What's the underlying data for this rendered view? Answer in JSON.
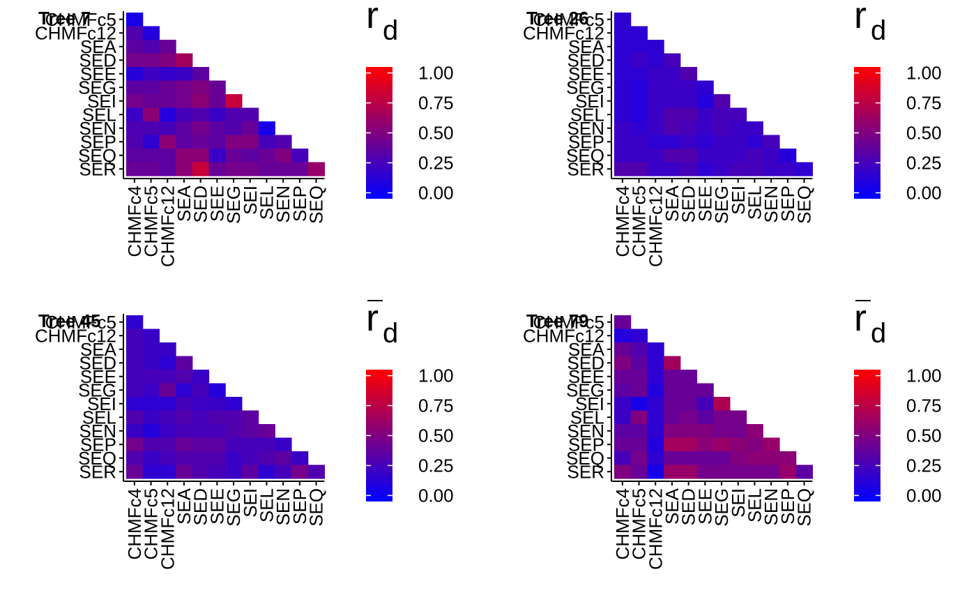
{
  "chart_data": [
    {
      "type": "heatmap",
      "title": "Tree 7",
      "legend_title": "r",
      "legend_subscript": "d",
      "legend_bar": false,
      "y_labels": [
        "CHMFc5",
        "CHMFc12",
        "SEA",
        "SED",
        "SEE",
        "SEG",
        "SEI",
        "SEL",
        "SEN",
        "SEP",
        "SEQ",
        "SER"
      ],
      "x_labels": [
        "CHMFc4",
        "CHMFc5",
        "CHMFc12",
        "SEA",
        "SED",
        "SEE",
        "SEG",
        "SEI",
        "SEL",
        "SEN",
        "SEP",
        "SEQ"
      ],
      "values": [
        [
          0.05
        ],
        [
          0.3,
          0.1
        ],
        [
          0.35,
          0.3,
          0.4
        ],
        [
          0.45,
          0.45,
          0.5,
          0.65
        ],
        [
          0.12,
          0.22,
          0.18,
          0.2,
          0.35
        ],
        [
          0.35,
          0.35,
          0.4,
          0.45,
          0.5,
          0.4
        ],
        [
          0.45,
          0.4,
          0.4,
          0.45,
          0.55,
          0.4,
          0.8
        ],
        [
          0.2,
          0.55,
          0.1,
          0.25,
          0.3,
          0.2,
          0.3,
          0.3
        ],
        [
          0.28,
          0.28,
          0.25,
          0.35,
          0.45,
          0.35,
          0.3,
          0.4,
          0.05
        ],
        [
          0.3,
          0.15,
          0.55,
          0.35,
          0.4,
          0.35,
          0.5,
          0.5,
          0.25,
          0.3
        ],
        [
          0.35,
          0.35,
          0.35,
          0.55,
          0.55,
          0.2,
          0.4,
          0.35,
          0.4,
          0.5,
          0.25
        ],
        [
          0.4,
          0.4,
          0.35,
          0.55,
          0.8,
          0.4,
          0.45,
          0.45,
          0.4,
          0.4,
          0.4,
          0.6
        ]
      ],
      "legend_ticks": [
        "1.00",
        "0.75",
        "0.50",
        "0.25",
        "0.00"
      ],
      "color_scale": {
        "low": "#0000ff",
        "high": "#ff0000",
        "limits": [
          -0.05,
          1.05
        ]
      }
    },
    {
      "type": "heatmap",
      "title": "Tree 26",
      "legend_title": "r",
      "legend_subscript": "d",
      "legend_bar": false,
      "y_labels": [
        "CHMFc5",
        "CHMFc12",
        "SEA",
        "SED",
        "SEE",
        "SEG",
        "SEI",
        "SEL",
        "SEN",
        "SEP",
        "SEQ",
        "SER"
      ],
      "x_labels": [
        "CHMFc4",
        "CHMFc5",
        "CHMFc12",
        "SEA",
        "SED",
        "SEE",
        "SEG",
        "SEI",
        "SEL",
        "SEN",
        "SEP",
        "SEQ"
      ],
      "values": [
        [
          0.15
        ],
        [
          0.15,
          0.15
        ],
        [
          0.15,
          0.15,
          0.15
        ],
        [
          0.15,
          0.2,
          0.15,
          0.25
        ],
        [
          0.15,
          0.15,
          0.2,
          0.2,
          0.3
        ],
        [
          0.15,
          0.1,
          0.2,
          0.2,
          0.2,
          0.15
        ],
        [
          0.15,
          0.1,
          0.2,
          0.2,
          0.2,
          0.1,
          0.3
        ],
        [
          0.15,
          0.1,
          0.2,
          0.3,
          0.3,
          0.2,
          0.25,
          0.25
        ],
        [
          0.2,
          0.15,
          0.2,
          0.3,
          0.25,
          0.2,
          0.25,
          0.2,
          0.2
        ],
        [
          0.2,
          0.2,
          0.15,
          0.15,
          0.2,
          0.15,
          0.2,
          0.2,
          0.15,
          0.25
        ],
        [
          0.2,
          0.2,
          0.2,
          0.3,
          0.3,
          0.2,
          0.2,
          0.2,
          0.25,
          0.2,
          0.1
        ],
        [
          0.3,
          0.3,
          0.2,
          0.2,
          0.25,
          0.15,
          0.2,
          0.25,
          0.25,
          0.2,
          0.2,
          0.15
        ]
      ],
      "legend_ticks": [
        "1.00",
        "0.75",
        "0.50",
        "0.25",
        "0.00"
      ],
      "color_scale": {
        "low": "#0000ff",
        "high": "#ff0000",
        "limits": [
          -0.05,
          1.05
        ]
      }
    },
    {
      "type": "heatmap",
      "title": "Tree 45",
      "legend_title": "r",
      "legend_subscript": "d",
      "legend_bar": true,
      "y_labels": [
        "CHMFc5",
        "CHMFc12",
        "SEA",
        "SED",
        "SEE",
        "SEG",
        "SEI",
        "SEL",
        "SEN",
        "SEP",
        "SEQ",
        "SER"
      ],
      "x_labels": [
        "CHMFc4",
        "CHMFc5",
        "CHMFc12",
        "SEA",
        "SED",
        "SEE",
        "SEG",
        "SEI",
        "SEL",
        "SEN",
        "SEP",
        "SEQ"
      ],
      "values": [
        [
          0.15
        ],
        [
          0.25,
          0.2
        ],
        [
          0.25,
          0.2,
          0.2
        ],
        [
          0.25,
          0.2,
          0.15,
          0.35
        ],
        [
          0.25,
          0.25,
          0.25,
          0.3,
          0.2
        ],
        [
          0.25,
          0.2,
          0.4,
          0.15,
          0.25,
          0.1
        ],
        [
          0.15,
          0.15,
          0.15,
          0.25,
          0.2,
          0.2,
          0.15
        ],
        [
          0.3,
          0.2,
          0.25,
          0.3,
          0.25,
          0.3,
          0.3,
          0.35
        ],
        [
          0.2,
          0.1,
          0.2,
          0.25,
          0.25,
          0.25,
          0.3,
          0.35,
          0.4
        ],
        [
          0.45,
          0.3,
          0.3,
          0.4,
          0.35,
          0.35,
          0.25,
          0.25,
          0.25,
          0.2
        ],
        [
          0.3,
          0.2,
          0.25,
          0.3,
          0.3,
          0.3,
          0.2,
          0.25,
          0.3,
          0.35,
          0.2
        ],
        [
          0.4,
          0.15,
          0.15,
          0.4,
          0.3,
          0.25,
          0.2,
          0.35,
          0.15,
          0.25,
          0.45,
          0.3
        ]
      ],
      "legend_ticks": [
        "1.00",
        "0.75",
        "0.50",
        "0.25",
        "0.00"
      ],
      "color_scale": {
        "low": "#0000ff",
        "high": "#ff0000",
        "limits": [
          -0.05,
          1.05
        ]
      }
    },
    {
      "type": "heatmap",
      "title": "Tree 79",
      "legend_title": "r",
      "legend_subscript": "d",
      "legend_bar": true,
      "y_labels": [
        "CHMFc5",
        "CHMFc12",
        "SEA",
        "SED",
        "SEE",
        "SEG",
        "SEI",
        "SEL",
        "SEN",
        "SEP",
        "SEQ",
        "SER"
      ],
      "x_labels": [
        "CHMFc4",
        "CHMFc5",
        "CHMFc12",
        "SEA",
        "SED",
        "SEE",
        "SEG",
        "SEI",
        "SEL",
        "SEN",
        "SEP",
        "SEQ"
      ],
      "values": [
        [
          0.4
        ],
        [
          0.1,
          0.15
        ],
        [
          0.4,
          0.3,
          0.15
        ],
        [
          0.5,
          0.35,
          0.15,
          0.65
        ],
        [
          0.4,
          0.4,
          0.15,
          0.4,
          0.4
        ],
        [
          0.35,
          0.4,
          0.1,
          0.4,
          0.4,
          0.4
        ],
        [
          0.2,
          0.05,
          0.15,
          0.4,
          0.4,
          0.25,
          0.7
        ],
        [
          0.2,
          0.5,
          0.15,
          0.4,
          0.45,
          0.35,
          0.45,
          0.45
        ],
        [
          0.35,
          0.35,
          0.15,
          0.5,
          0.5,
          0.5,
          0.45,
          0.45,
          0.55
        ],
        [
          0.4,
          0.4,
          0.1,
          0.65,
          0.65,
          0.55,
          0.6,
          0.55,
          0.5,
          0.6
        ],
        [
          0.25,
          0.45,
          0.15,
          0.4,
          0.4,
          0.4,
          0.4,
          0.5,
          0.55,
          0.55,
          0.55
        ],
        [
          0.5,
          0.4,
          0.05,
          0.6,
          0.6,
          0.45,
          0.45,
          0.45,
          0.45,
          0.45,
          0.6,
          0.35
        ]
      ],
      "legend_ticks": [
        "1.00",
        "0.75",
        "0.50",
        "0.25",
        "0.00"
      ],
      "color_scale": {
        "low": "#0000ff",
        "high": "#ff0000",
        "limits": [
          -0.05,
          1.05
        ]
      }
    }
  ]
}
